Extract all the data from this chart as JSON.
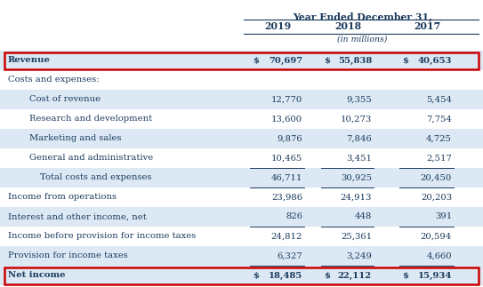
{
  "header_title": "Year Ended December 31,",
  "col_headers": [
    "2019",
    "2018",
    "2017"
  ],
  "sub_header": "(in millions)",
  "rows": [
    {
      "label": "Revenue",
      "vals": [
        "$",
        "70,697",
        "$",
        "55,838",
        "$",
        "40,653"
      ],
      "bold": true,
      "red_box": true,
      "bg": "#dce9f5",
      "indent": 0
    },
    {
      "label": "Costs and expenses:",
      "vals": [
        "",
        "",
        "",
        "",
        "",
        ""
      ],
      "bold": false,
      "red_box": false,
      "bg": "#ffffff",
      "indent": 0
    },
    {
      "label": "Cost of revenue",
      "vals": [
        "",
        "12,770",
        "",
        "9,355",
        "",
        "5,454"
      ],
      "bold": false,
      "red_box": false,
      "bg": "#dce9f5",
      "indent": 2
    },
    {
      "label": "Research and development",
      "vals": [
        "",
        "13,600",
        "",
        "10,273",
        "",
        "7,754"
      ],
      "bold": false,
      "red_box": false,
      "bg": "#ffffff",
      "indent": 2
    },
    {
      "label": "Marketing and sales",
      "vals": [
        "",
        "9,876",
        "",
        "7,846",
        "",
        "4,725"
      ],
      "bold": false,
      "red_box": false,
      "bg": "#dce9f5",
      "indent": 2
    },
    {
      "label": "General and administrative",
      "vals": [
        "",
        "10,465",
        "",
        "3,451",
        "",
        "2,517"
      ],
      "bold": false,
      "red_box": false,
      "bg": "#ffffff",
      "indent": 2
    },
    {
      "label": "Total costs and expenses",
      "vals": [
        "",
        "46,711",
        "",
        "30,925",
        "",
        "20,450"
      ],
      "bold": false,
      "red_box": false,
      "bg": "#dce9f5",
      "indent": 3,
      "top_line": true
    },
    {
      "label": "Income from operations",
      "vals": [
        "",
        "23,986",
        "",
        "24,913",
        "",
        "20,203"
      ],
      "bold": false,
      "red_box": false,
      "bg": "#ffffff",
      "indent": 0,
      "top_line": true
    },
    {
      "label": "Interest and other income, net",
      "vals": [
        "",
        "826",
        "",
        "448",
        "",
        "391"
      ],
      "bold": false,
      "red_box": false,
      "bg": "#dce9f5",
      "indent": 0
    },
    {
      "label": "Income before provision for income taxes",
      "vals": [
        "",
        "24,812",
        "",
        "25,361",
        "",
        "20,594"
      ],
      "bold": false,
      "red_box": false,
      "bg": "#ffffff",
      "indent": 0,
      "top_line": true
    },
    {
      "label": "Provision for income taxes",
      "vals": [
        "",
        "6,327",
        "",
        "3,249",
        "",
        "4,660"
      ],
      "bold": false,
      "red_box": false,
      "bg": "#dce9f5",
      "indent": 0
    },
    {
      "label": "Net income",
      "vals": [
        "$",
        "18,485",
        "$",
        "22,112",
        "$",
        "15,934"
      ],
      "bold": true,
      "red_box": true,
      "bg": "#dce9f5",
      "indent": 0,
      "top_line": true
    }
  ],
  "bg_color": "#ffffff",
  "text_color": "#1a3a5c",
  "red_box_color": "#cc0000",
  "font_size": 7.2,
  "header_font_size": 7.8
}
